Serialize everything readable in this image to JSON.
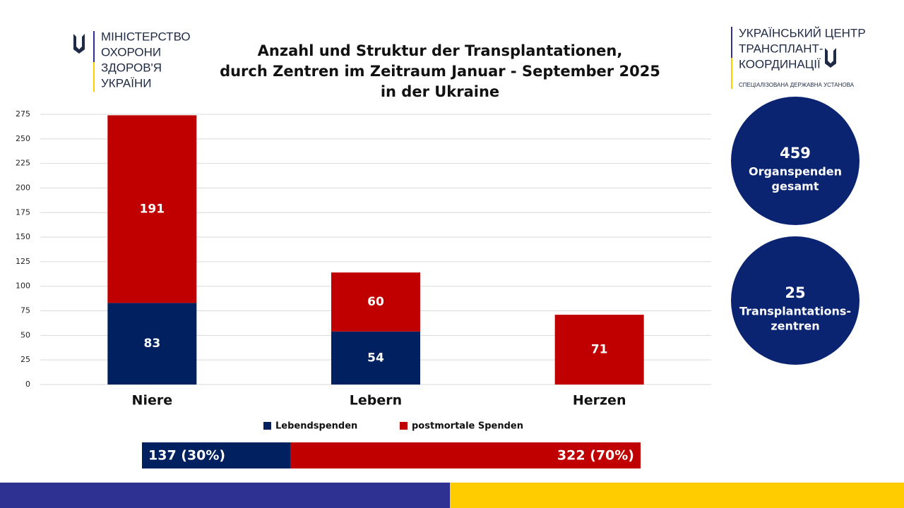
{
  "header": {
    "left_logo": [
      "МІНІСТЕРСТВО",
      "ОХОРОНИ",
      "ЗДОРОВ'Я",
      "УКРАЇНИ"
    ],
    "right_logo": [
      "УКРАЇНСЬКИЙ ЦЕНТР",
      "ТРАНСПЛАНТ-",
      "КООРДИНАЦІЇ"
    ],
    "right_logo_subtitle": "СПЕЦІАЛІЗОВАНА ДЕРЖАВНА УСТАНОВА"
  },
  "callouts": [
    {
      "value": "459",
      "lines": [
        "Organspenden",
        "gesamt"
      ]
    },
    {
      "value": "25",
      "lines": [
        "Transplantations-",
        "zentren"
      ]
    }
  ],
  "chart_data": {
    "type": "stacked_bar",
    "title": [
      "Anzahl und Struktur der Transplantationen,",
      "durch Zentren im Zeitraum Januar - September 2025",
      "in der Ukraine"
    ],
    "categories": [
      "Niere",
      "Lebern",
      "Herzen"
    ],
    "series": [
      {
        "name": "Lebendspenden",
        "color": "#002060",
        "values": [
          83,
          54,
          null
        ]
      },
      {
        "name": "postmortale Spenden",
        "color": "#c00000",
        "values": [
          191,
          60,
          71
        ]
      }
    ],
    "ylim": [
      0,
      275
    ],
    "yticks": [
      0,
      25,
      50,
      75,
      100,
      125,
      150,
      175,
      200,
      225,
      250,
      275
    ],
    "grid": true,
    "legend": "bottom",
    "summary": {
      "values": [
        137,
        322
      ],
      "value_labels": [
        "137 (30%)",
        "322 (70%)"
      ]
    }
  }
}
